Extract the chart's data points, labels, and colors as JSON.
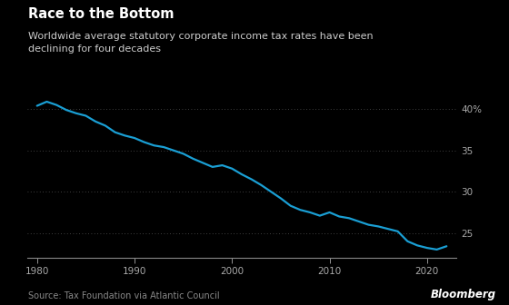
{
  "title": "Race to the Bottom",
  "subtitle": "Worldwide average statutory corporate income tax rates have been\ndeclining for four decades",
  "source": "Source: Tax Foundation via Atlantic Council",
  "watermark": "Bloomberg",
  "background_color": "#000000",
  "title_color": "#ffffff",
  "subtitle_color": "#cccccc",
  "line_color": "#1a9fd4",
  "axis_color": "#888888",
  "grid_color": "#555555",
  "tick_label_color": "#aaaaaa",
  "source_color": "#888888",
  "watermark_color": "#ffffff",
  "ylim": [
    22.0,
    42.0
  ],
  "yticks": [
    25,
    30,
    35,
    40
  ],
  "xlim": [
    1979,
    2023
  ],
  "xticks": [
    1980,
    1990,
    2000,
    2010,
    2020
  ],
  "years": [
    1980,
    1981,
    1982,
    1983,
    1984,
    1985,
    1986,
    1987,
    1988,
    1989,
    1990,
    1991,
    1992,
    1993,
    1994,
    1995,
    1996,
    1997,
    1998,
    1999,
    2000,
    2001,
    2002,
    2003,
    2004,
    2005,
    2006,
    2007,
    2008,
    2009,
    2010,
    2011,
    2012,
    2013,
    2014,
    2015,
    2016,
    2017,
    2018,
    2019,
    2020,
    2021,
    2022
  ],
  "values": [
    40.4,
    40.9,
    40.5,
    39.9,
    39.5,
    39.2,
    38.5,
    38.0,
    37.2,
    36.8,
    36.5,
    36.0,
    35.6,
    35.4,
    35.0,
    34.6,
    34.0,
    33.5,
    33.0,
    33.2,
    32.8,
    32.1,
    31.5,
    30.8,
    30.0,
    29.2,
    28.3,
    27.8,
    27.5,
    27.1,
    27.5,
    27.0,
    26.8,
    26.4,
    26.0,
    25.8,
    25.5,
    25.2,
    24.0,
    23.5,
    23.2,
    23.0,
    23.4
  ]
}
